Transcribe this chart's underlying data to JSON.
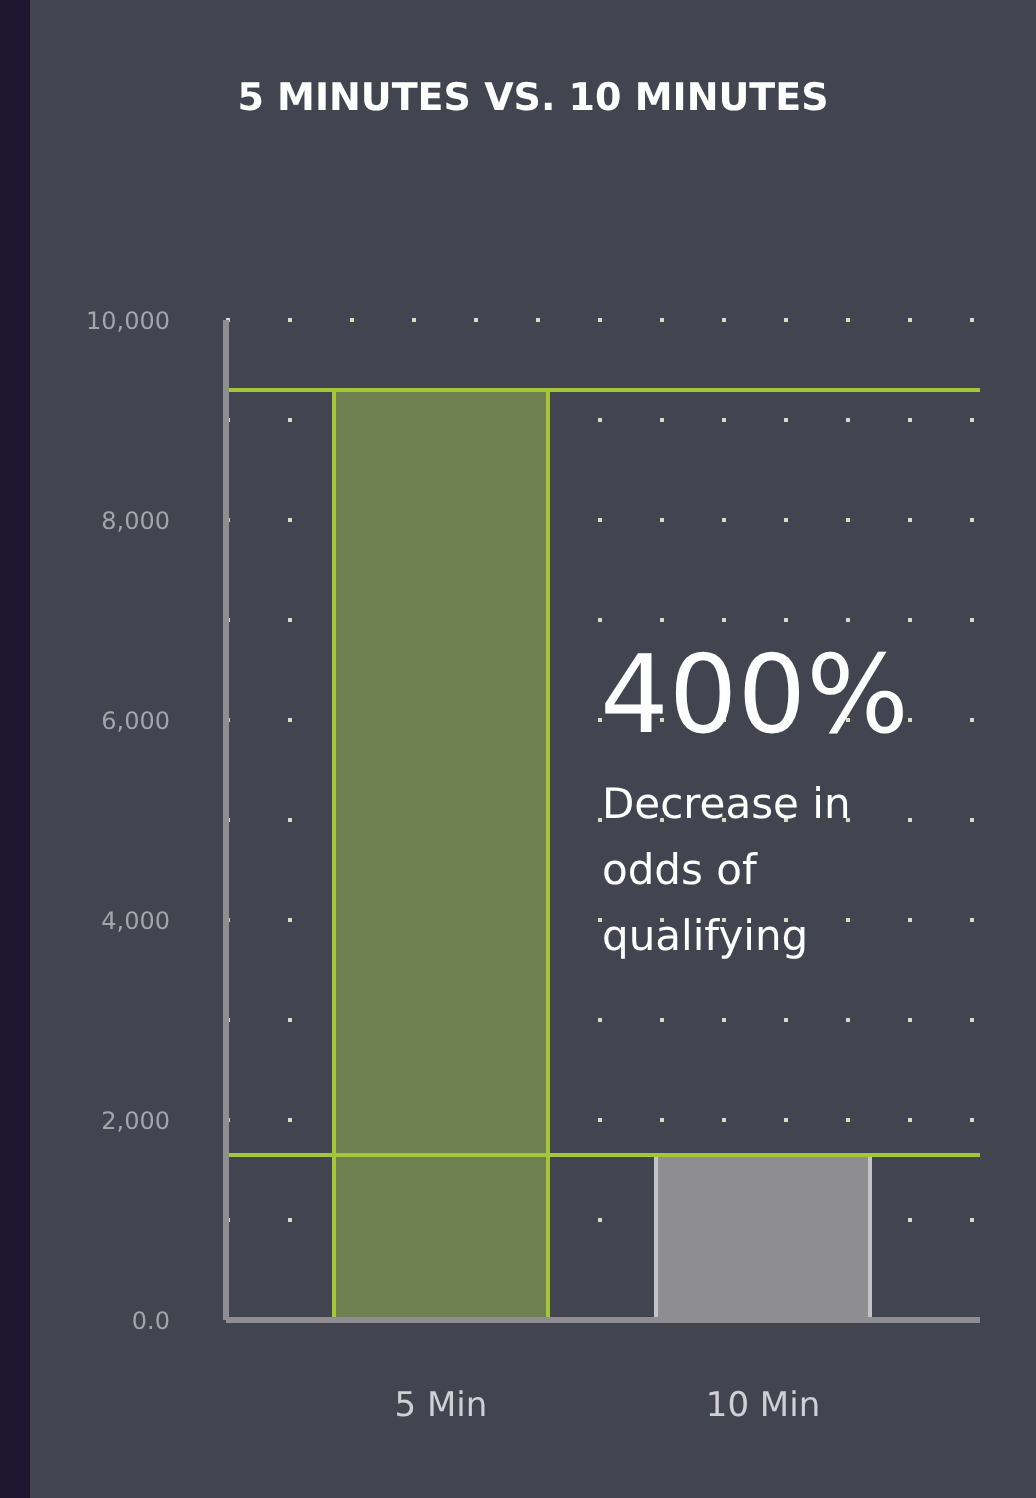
{
  "chart_data": {
    "type": "bar",
    "title": "5 MINUTES VS. 10 MINUTES",
    "categories": [
      "5 Min",
      "10 Min"
    ],
    "values": [
      9300,
      1650
    ],
    "colors": [
      "#6f8050",
      "#8e8d92"
    ],
    "ylim": [
      0,
      10000
    ],
    "yticks": [
      {
        "value": 0,
        "label": "0.0"
      },
      {
        "value": 1000,
        "label": null
      },
      {
        "value": 2000,
        "label": "2,000"
      },
      {
        "value": 3000,
        "label": null
      },
      {
        "value": 4000,
        "label": "4,000"
      },
      {
        "value": 5000,
        "label": null
      },
      {
        "value": 6000,
        "label": "6,000"
      },
      {
        "value": 7000,
        "label": null
      },
      {
        "value": 8000,
        "label": "8,000"
      },
      {
        "value": 9000,
        "label": null
      },
      {
        "value": 10000,
        "label": "10,000"
      }
    ],
    "grid": "y",
    "ref_lines": [
      {
        "axis": "y",
        "value": 9300,
        "color": "#a4c639"
      },
      {
        "axis": "y",
        "value": 1650,
        "color": "#a4c639"
      }
    ],
    "annotations": [
      "400%",
      "Decrease in odds of qualifying"
    ]
  }
}
